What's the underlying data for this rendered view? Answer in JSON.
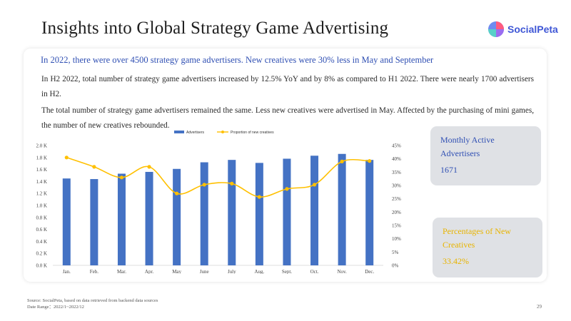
{
  "page": {
    "title": "Insights into Global Strategy Game Advertising",
    "logo_text": "SocialPeta",
    "headline": "In 2022, there were over 4500 strategy game advertisers. New creatives were 30%  less in May and September",
    "paragraph1": "In H2 2022, total number of strategy game advertisers increased by 12.5% YoY and by 8% as compared to H1 2022. There were nearly 1700 advertisers in H2.",
    "paragraph2": "The total number of strategy game advertisers remained the same. Less new creatives were advertised in May. Affected by the purchasing of mini games, the number of new creatives rebounded.",
    "source": "Source: SocialPeta, based on data retrieved from backend data sources",
    "date_range": "Date Range：2022/1~2022/12",
    "page_number": "29"
  },
  "stats": {
    "monthly_active": {
      "label": "Monthly Active Advertisers",
      "value": "1671"
    },
    "new_creatives": {
      "label": "Percentages of New Creatives",
      "value": "33.42%"
    }
  },
  "colors": {
    "bar": "#4472c4",
    "line": "#ffc000",
    "headline": "#2f4fb3",
    "accent_yellow": "#e8b400"
  },
  "chart_data": {
    "type": "bar",
    "categories": [
      "Jan.",
      "Feb.",
      "Mar.",
      "Apr.",
      "May",
      "June",
      "July",
      "Aug.",
      "Sept.",
      "Oct.",
      "Nov.",
      "Dec."
    ],
    "series": [
      {
        "name": "Advertisers",
        "type": "bar",
        "axis": "left",
        "values": [
          1450,
          1440,
          1530,
          1560,
          1610,
          1720,
          1760,
          1710,
          1780,
          1830,
          1860,
          1760
        ]
      },
      {
        "name": "Proportion of new creatives",
        "type": "line",
        "axis": "right",
        "values": [
          40.5,
          37,
          33,
          37,
          27,
          30.3,
          30.7,
          25.7,
          28.7,
          30.3,
          39,
          39.2
        ]
      }
    ],
    "left_axis": {
      "ylim": [
        0,
        2000
      ],
      "ticks": [
        0,
        200,
        400,
        600,
        800,
        1000,
        1200,
        1400,
        1600,
        1800,
        2000
      ],
      "tick_labels": [
        "0.0 K",
        "0.2 K",
        "0.4 K",
        "0.6 K",
        "0.8 K",
        "1.0 K",
        "1.2 K",
        "1.4 K",
        "1.6 K",
        "1.8 K",
        "2.0 K"
      ]
    },
    "right_axis": {
      "ylim": [
        0,
        45
      ],
      "ticks": [
        0,
        5,
        10,
        15,
        20,
        25,
        30,
        35,
        40,
        45
      ],
      "tick_labels": [
        "0%",
        "5%",
        "10%",
        "15%",
        "20%",
        "25%",
        "30%",
        "35%",
        "40%",
        "45%"
      ]
    },
    "legend_position": "top",
    "grid": false
  }
}
